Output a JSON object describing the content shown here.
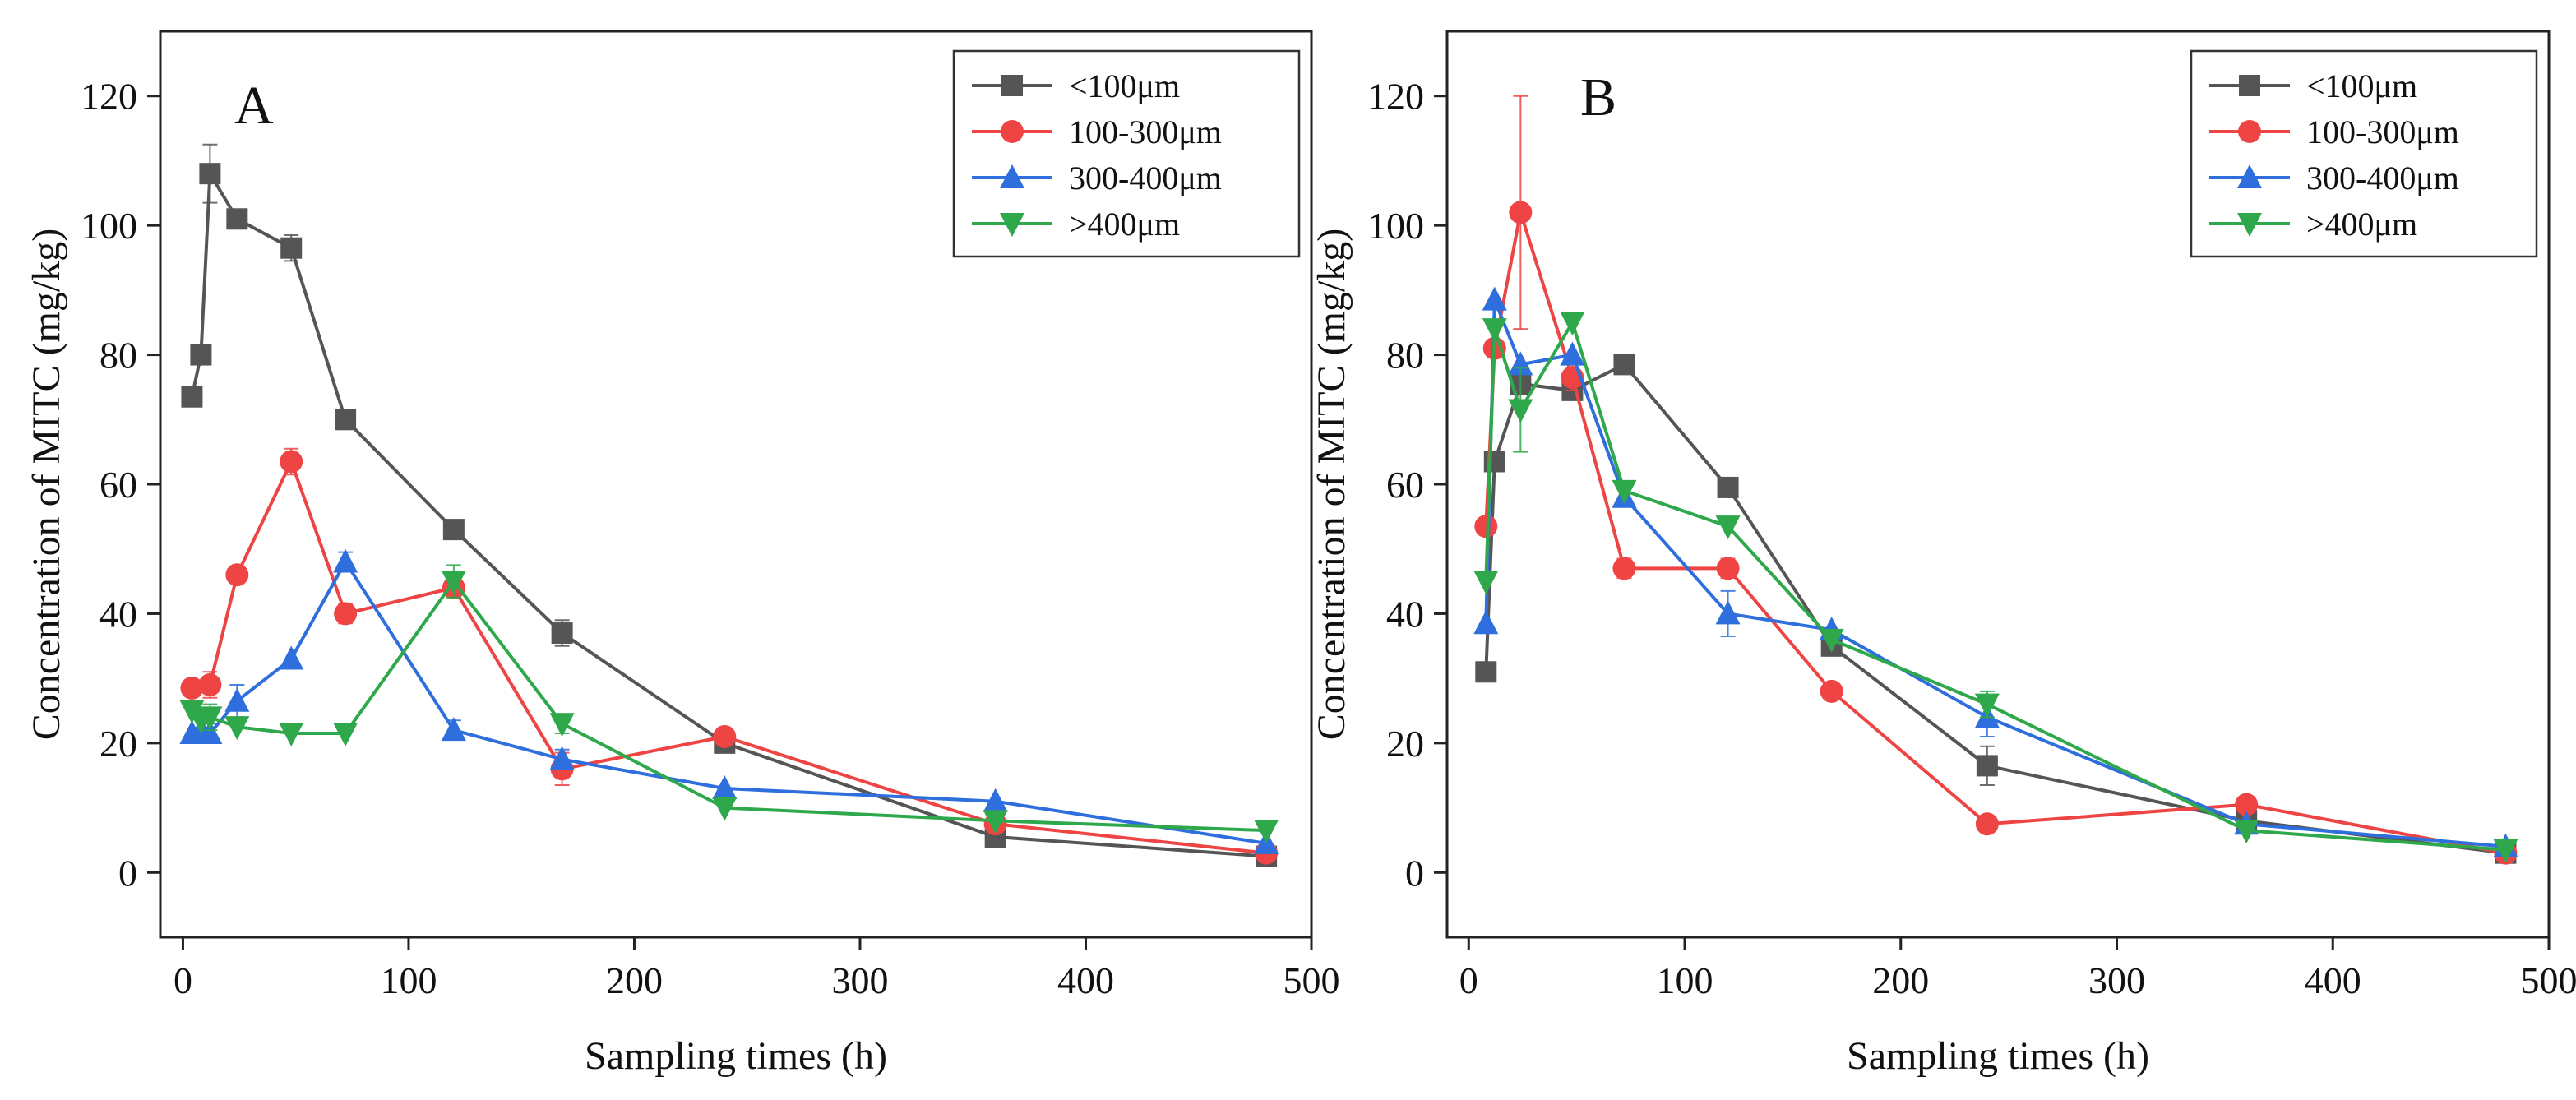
{
  "chart_data": [
    {
      "type": "line",
      "panel_label": "A",
      "xlabel": "Sampling times (h)",
      "ylabel": "Concentration of MITC (mg/kg)",
      "xlim": [
        -10,
        500
      ],
      "ylim": [
        -10,
        130
      ],
      "xticks": [
        0,
        100,
        200,
        300,
        400,
        500
      ],
      "yticks": [
        0,
        20,
        40,
        60,
        80,
        100,
        120
      ],
      "grid": false,
      "legend_position": "top-right",
      "series": [
        {
          "name": "<100μm",
          "color": "#555555",
          "marker": "square",
          "points": [
            {
              "x": 4,
              "y": 73.5,
              "err": 0
            },
            {
              "x": 8,
              "y": 80,
              "err": 0
            },
            {
              "x": 12,
              "y": 108,
              "err": 4.5
            },
            {
              "x": 24,
              "y": 101,
              "err": 0
            },
            {
              "x": 48,
              "y": 96.5,
              "err": 2
            },
            {
              "x": 72,
              "y": 70,
              "err": 0
            },
            {
              "x": 120,
              "y": 53,
              "err": 0
            },
            {
              "x": 168,
              "y": 37,
              "err": 2
            },
            {
              "x": 240,
              "y": 20,
              "err": 0
            },
            {
              "x": 360,
              "y": 5.5,
              "err": 0
            },
            {
              "x": 480,
              "y": 2.5,
              "err": 0
            }
          ]
        },
        {
          "name": "100-300μm",
          "color": "#ee4444",
          "marker": "circle",
          "points": [
            {
              "x": 4,
              "y": 28.5,
              "err": 0
            },
            {
              "x": 12,
              "y": 29,
              "err": 2
            },
            {
              "x": 24,
              "y": 46,
              "err": 0
            },
            {
              "x": 48,
              "y": 63.5,
              "err": 2
            },
            {
              "x": 72,
              "y": 40,
              "err": 1.5
            },
            {
              "x": 120,
              "y": 44,
              "err": 0
            },
            {
              "x": 168,
              "y": 16,
              "err": 2.5
            },
            {
              "x": 240,
              "y": 21,
              "err": 0
            },
            {
              "x": 360,
              "y": 7.5,
              "err": 0
            },
            {
              "x": 480,
              "y": 3,
              "err": 0
            }
          ]
        },
        {
          "name": "300-400μm",
          "color": "#2f6fdd",
          "marker": "triangle-up",
          "points": [
            {
              "x": 4,
              "y": 21.5,
              "err": 0
            },
            {
              "x": 8,
              "y": 22,
              "err": 0
            },
            {
              "x": 12,
              "y": 21.5,
              "err": 1.5
            },
            {
              "x": 24,
              "y": 26.5,
              "err": 2.5
            },
            {
              "x": 48,
              "y": 33,
              "err": 0
            },
            {
              "x": 72,
              "y": 48,
              "err": 1.5
            },
            {
              "x": 120,
              "y": 22,
              "err": 1.5
            },
            {
              "x": 168,
              "y": 17.5,
              "err": 1.5
            },
            {
              "x": 240,
              "y": 13,
              "err": 0
            },
            {
              "x": 360,
              "y": 11,
              "err": 0
            },
            {
              "x": 480,
              "y": 4.5,
              "err": 0
            }
          ]
        },
        {
          "name": ">400μm",
          "color": "#2ea84a",
          "marker": "triangle-down",
          "points": [
            {
              "x": 4,
              "y": 25,
              "err": 0
            },
            {
              "x": 8,
              "y": 23.5,
              "err": 0
            },
            {
              "x": 12,
              "y": 24,
              "err": 2
            },
            {
              "x": 24,
              "y": 22.5,
              "err": 0
            },
            {
              "x": 48,
              "y": 21.5,
              "err": 0
            },
            {
              "x": 72,
              "y": 21.5,
              "err": 0
            },
            {
              "x": 120,
              "y": 45,
              "err": 2.5
            },
            {
              "x": 168,
              "y": 23,
              "err": 1.5
            },
            {
              "x": 240,
              "y": 10,
              "err": 0
            },
            {
              "x": 360,
              "y": 8,
              "err": 0
            },
            {
              "x": 480,
              "y": 6.5,
              "err": 0
            }
          ]
        }
      ]
    },
    {
      "type": "line",
      "panel_label": "B",
      "xlabel": "Sampling times (h)",
      "ylabel": "Concentration of MITC (mg/kg)",
      "xlim": [
        -10,
        500
      ],
      "ylim": [
        -10,
        130
      ],
      "xticks": [
        0,
        100,
        200,
        300,
        400,
        500
      ],
      "yticks": [
        0,
        20,
        40,
        60,
        80,
        100,
        120
      ],
      "grid": false,
      "legend_position": "top-right",
      "series": [
        {
          "name": "<100μm",
          "color": "#555555",
          "marker": "square",
          "points": [
            {
              "x": 8,
              "y": 31,
              "err": 0
            },
            {
              "x": 12,
              "y": 63.5,
              "err": 0
            },
            {
              "x": 24,
              "y": 75.5,
              "err": 0
            },
            {
              "x": 48,
              "y": 74.5,
              "err": 0
            },
            {
              "x": 72,
              "y": 78.5,
              "err": 0
            },
            {
              "x": 120,
              "y": 59.5,
              "err": 0
            },
            {
              "x": 168,
              "y": 35,
              "err": 1.5
            },
            {
              "x": 240,
              "y": 16.5,
              "err": 3
            },
            {
              "x": 360,
              "y": 8,
              "err": 0
            },
            {
              "x": 480,
              "y": 3,
              "err": 0
            }
          ]
        },
        {
          "name": "100-300μm",
          "color": "#ee4444",
          "marker": "circle",
          "points": [
            {
              "x": 8,
              "y": 53.5,
              "err": 0
            },
            {
              "x": 12,
              "y": 81,
              "err": 0
            },
            {
              "x": 24,
              "y": 102,
              "err": 18
            },
            {
              "x": 48,
              "y": 76.5,
              "err": 2
            },
            {
              "x": 72,
              "y": 47,
              "err": 1.5
            },
            {
              "x": 120,
              "y": 47,
              "err": 1.5
            },
            {
              "x": 168,
              "y": 28,
              "err": 0
            },
            {
              "x": 240,
              "y": 7.5,
              "err": 0
            },
            {
              "x": 360,
              "y": 10.5,
              "err": 0
            },
            {
              "x": 480,
              "y": 3,
              "err": 0
            }
          ]
        },
        {
          "name": "300-400μm",
          "color": "#2f6fdd",
          "marker": "triangle-up",
          "points": [
            {
              "x": 8,
              "y": 38.5,
              "err": 0
            },
            {
              "x": 12,
              "y": 88.5,
              "err": 0
            },
            {
              "x": 24,
              "y": 78.5,
              "err": 0
            },
            {
              "x": 48,
              "y": 80,
              "err": 0
            },
            {
              "x": 72,
              "y": 58,
              "err": 1.5
            },
            {
              "x": 120,
              "y": 40,
              "err": 3.5
            },
            {
              "x": 168,
              "y": 37.5,
              "err": 0
            },
            {
              "x": 240,
              "y": 24,
              "err": 3
            },
            {
              "x": 360,
              "y": 7.5,
              "err": 0
            },
            {
              "x": 480,
              "y": 4,
              "err": 0
            }
          ]
        },
        {
          "name": ">400μm",
          "color": "#2ea84a",
          "marker": "triangle-down",
          "points": [
            {
              "x": 8,
              "y": 45,
              "err": 0
            },
            {
              "x": 12,
              "y": 84,
              "err": 0
            },
            {
              "x": 24,
              "y": 71.5,
              "err": 6.5
            },
            {
              "x": 48,
              "y": 85,
              "err": 0
            },
            {
              "x": 72,
              "y": 59,
              "err": 0
            },
            {
              "x": 120,
              "y": 53.5,
              "err": 0
            },
            {
              "x": 168,
              "y": 36,
              "err": 0
            },
            {
              "x": 240,
              "y": 26,
              "err": 2
            },
            {
              "x": 360,
              "y": 6.5,
              "err": 0
            },
            {
              "x": 480,
              "y": 3.5,
              "err": 0
            }
          ]
        }
      ]
    }
  ]
}
